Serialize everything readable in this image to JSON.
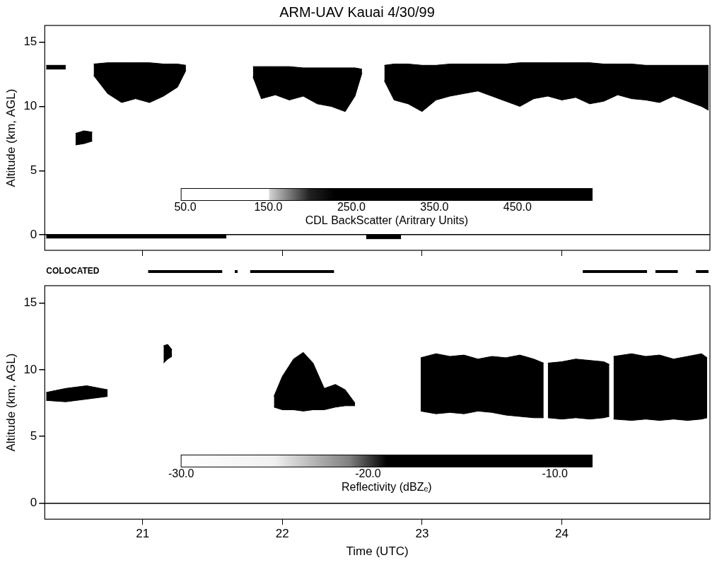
{
  "chart_data": [
    {
      "type": "area",
      "title": "ARM-UAV Kauai 4/30/99",
      "y_label": "Altitude (km, AGL)",
      "tick_labels": "y",
      "xlim": [
        20.3,
        25.06
      ],
      "xticks": [
        21,
        22,
        23,
        24
      ],
      "ylim": [
        -1.2,
        16.3
      ],
      "yticks": [
        0,
        5,
        10,
        15
      ],
      "series": [
        {
          "color": "#000000",
          "x": [
            20.31,
            20.45
          ],
          "top": [
            13.2,
            13.2
          ],
          "base": [
            12.9,
            12.9
          ]
        },
        {
          "color": "#000000",
          "x": [
            20.52,
            20.58,
            20.64
          ],
          "top": [
            7.9,
            8.1,
            8.0
          ],
          "base": [
            7.0,
            7.1,
            7.3
          ]
        },
        {
          "color": "#000000",
          "x": [
            20.65,
            20.75,
            20.85,
            20.95,
            21.05,
            21.15,
            21.25,
            21.31
          ],
          "top": [
            13.3,
            13.4,
            13.4,
            13.4,
            13.4,
            13.3,
            13.3,
            13.2
          ],
          "base": [
            12.4,
            11.0,
            10.3,
            10.6,
            10.3,
            10.8,
            11.5,
            12.8
          ]
        },
        {
          "color": "#000000",
          "x": [
            21.79,
            21.85,
            21.95,
            22.05,
            22.15,
            22.25,
            22.35,
            22.45,
            22.52,
            22.57
          ],
          "top": [
            13.1,
            13.1,
            13.1,
            13.1,
            13.0,
            13.0,
            13.0,
            13.0,
            13.0,
            12.9
          ],
          "base": [
            12.3,
            10.6,
            10.9,
            10.5,
            10.8,
            10.2,
            10.0,
            9.6,
            10.8,
            12.6
          ]
        },
        {
          "color": "#000000",
          "x": [
            22.73,
            22.8,
            22.9,
            23.0,
            23.1,
            23.2,
            23.3,
            23.4,
            23.5,
            23.6,
            23.7,
            23.8,
            23.9,
            24.0,
            24.1,
            24.2,
            24.3,
            24.4,
            24.5,
            24.6,
            24.7,
            24.8,
            24.9,
            25.0,
            25.05
          ],
          "top": [
            13.2,
            13.3,
            13.3,
            13.2,
            13.2,
            13.3,
            13.3,
            13.3,
            13.3,
            13.3,
            13.4,
            13.4,
            13.4,
            13.4,
            13.4,
            13.4,
            13.3,
            13.3,
            13.3,
            13.2,
            13.2,
            13.2,
            13.2,
            13.2,
            13.2
          ],
          "base": [
            12.0,
            10.5,
            10.2,
            9.6,
            10.5,
            10.8,
            11.0,
            11.2,
            10.8,
            10.4,
            10.0,
            10.6,
            10.8,
            10.5,
            10.7,
            10.2,
            10.4,
            10.9,
            10.6,
            10.5,
            10.3,
            10.8,
            10.4,
            10.0,
            9.7
          ]
        },
        {
          "color": "#000000",
          "x": [
            20.31,
            21.6
          ],
          "top": [
            0,
            0
          ],
          "base": [
            -0.25,
            -0.25
          ]
        },
        {
          "color": "#000000",
          "x": [
            22.6,
            22.85
          ],
          "top": [
            0,
            0
          ],
          "base": [
            -0.3,
            -0.3
          ]
        }
      ],
      "colorbar": {
        "label": "CDL BackScatter (Aritrary Units)",
        "lim": [
          45,
          540
        ],
        "ticks": [
          {
            "value": 50,
            "label": "50.0"
          },
          {
            "value": 150,
            "label": "150.0"
          },
          {
            "value": 250,
            "label": "250.0"
          },
          {
            "value": 350,
            "label": "350.0"
          },
          {
            "value": 450,
            "label": "450.0"
          }
        ],
        "stops": [
          [
            45,
            "#ffffff"
          ],
          [
            150,
            "#ffffff"
          ],
          [
            152,
            "#d0d0d0"
          ],
          [
            200,
            "#202020"
          ],
          [
            230,
            "#000000"
          ],
          [
            540,
            "#000000"
          ]
        ]
      }
    },
    {
      "type": "area",
      "x_label": "Time (UTC)",
      "y_label": "Altitude (km, AGL)",
      "xlim": [
        20.3,
        25.06
      ],
      "xticks": [
        21,
        22,
        23,
        24
      ],
      "ylim": [
        -1.2,
        16.3
      ],
      "yticks": [
        0,
        5,
        10,
        15
      ],
      "series": [
        {
          "color": "#000000",
          "x": [
            20.31,
            20.45,
            20.6,
            20.75
          ],
          "top": [
            8.3,
            8.6,
            8.8,
            8.5
          ],
          "base": [
            7.7,
            7.6,
            7.8,
            8.0
          ]
        },
        {
          "color": "#000000",
          "x": [
            21.15,
            21.18,
            21.21
          ],
          "top": [
            11.8,
            11.9,
            11.5
          ],
          "base": [
            10.5,
            10.8,
            11.0
          ]
        },
        {
          "color": "#000000",
          "x": [
            21.94,
            22.0,
            22.08,
            22.15,
            22.22,
            22.3,
            22.38,
            22.45,
            22.52
          ],
          "top": [
            8.0,
            9.5,
            10.8,
            11.3,
            10.5,
            8.6,
            8.9,
            8.5,
            7.5
          ],
          "base": [
            7.2,
            7.0,
            7.0,
            6.9,
            7.0,
            7.0,
            7.2,
            7.3,
            7.3
          ]
        },
        {
          "color": "#000000",
          "x": [
            22.99,
            23.1,
            23.2,
            23.3,
            23.4,
            23.5,
            23.6,
            23.7,
            23.8,
            23.87
          ],
          "top": [
            10.9,
            11.2,
            11.0,
            11.1,
            10.8,
            11.0,
            10.9,
            11.1,
            10.8,
            10.5
          ],
          "base": [
            6.9,
            6.7,
            6.8,
            6.7,
            6.9,
            6.8,
            6.6,
            6.5,
            6.4,
            6.4
          ]
        },
        {
          "color": "#000000",
          "x": [
            23.9,
            24.0,
            24.1,
            24.2,
            24.3,
            24.34
          ],
          "top": [
            10.5,
            10.6,
            10.8,
            10.7,
            10.6,
            10.4
          ],
          "base": [
            6.4,
            6.3,
            6.4,
            6.3,
            6.4,
            6.5
          ]
        },
        {
          "color": "#000000",
          "x": [
            24.37,
            24.5,
            24.6,
            24.7,
            24.8,
            24.9,
            25.0,
            25.04
          ],
          "top": [
            11.0,
            11.2,
            11.0,
            11.1,
            10.8,
            11.0,
            11.2,
            10.9
          ],
          "base": [
            6.3,
            6.2,
            6.3,
            6.2,
            6.3,
            6.2,
            6.3,
            6.4
          ]
        }
      ],
      "colorbar": {
        "label": "Reflectivity (dBZₑ)",
        "lim": [
          -30,
          -8
        ],
        "ticks": [
          {
            "value": -30,
            "label": "-30.0"
          },
          {
            "value": -20,
            "label": "-20.0"
          },
          {
            "value": -10,
            "label": "-10.0"
          }
        ],
        "stops": [
          [
            -30,
            "#ffffff"
          ],
          [
            -25,
            "#f0f0f0"
          ],
          [
            -21,
            "#808080"
          ],
          [
            -19,
            "#000000"
          ],
          [
            -8,
            "#000000"
          ]
        ]
      },
      "colocated": {
        "label": "COLOCATED",
        "segments": [
          [
            21.04,
            21.57
          ],
          [
            21.66,
            21.68
          ],
          [
            21.77,
            22.37
          ],
          [
            24.15,
            24.61
          ],
          [
            24.67,
            24.83
          ],
          [
            24.96,
            25.05
          ]
        ]
      }
    }
  ]
}
